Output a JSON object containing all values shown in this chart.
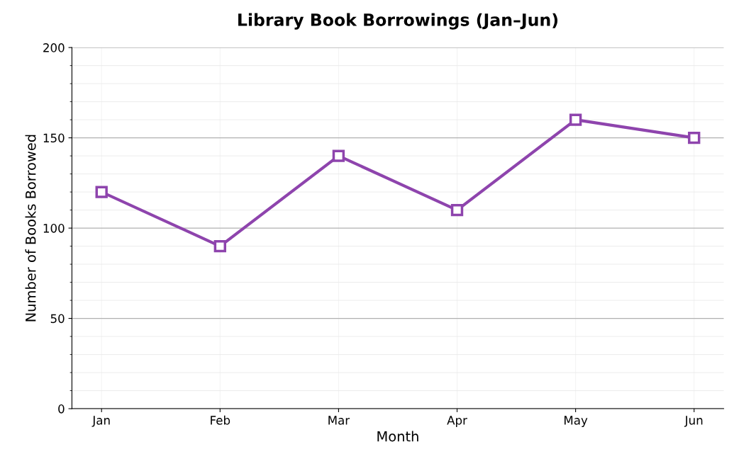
{
  "chart_data": {
    "type": "line",
    "title": "Library Book Borrowings (Jan–Jun)",
    "xlabel": "Month",
    "ylabel": "Number of Books Borrowed",
    "categories": [
      "Jan",
      "Feb",
      "Mar",
      "Apr",
      "May",
      "Jun"
    ],
    "series": [
      {
        "color": "#8e44ad",
        "values": [
          120,
          90,
          140,
          110,
          160,
          150
        ]
      }
    ],
    "ylim": [
      0,
      200
    ],
    "yticks": [
      0,
      50,
      100,
      150,
      200
    ],
    "grid": true,
    "marker": "square",
    "line_style": "solid"
  }
}
